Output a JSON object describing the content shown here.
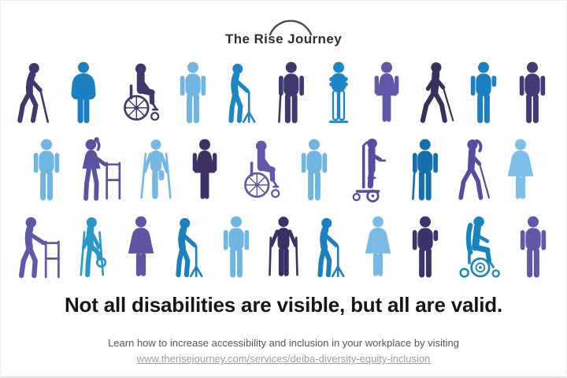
{
  "logo": {
    "text": "The Rise Journey"
  },
  "headline": "Not all disabilities are visible, but all are valid.",
  "footer": {
    "line1": "Learn how to increase accessibility and inclusion in your workplace by visiting",
    "link": "www.therisejourney.com/services/deiba-diversity-equity-inclusion"
  },
  "colors": {
    "background": "#ffffff",
    "headline_text": "#17171a",
    "footer_text": "#54585c",
    "link_text": "#9b9ea3",
    "logo_text": "#2e2e2e",
    "navy": "#3e3a6e",
    "purple": "#6059a8",
    "dark_purple": "#3e3166",
    "blue": "#1d82c5",
    "light_blue": "#6fb5e2"
  },
  "icon_rows": [
    {
      "icons": [
        {
          "name": "elder-walking-with-cane",
          "type": "cane-walk",
          "color": "#3e3a6e",
          "label": "elderly person walking with a cane"
        },
        {
          "name": "plus-size-person",
          "type": "standing-plus",
          "color": "#1d7fc3",
          "label": "plus-size standing person"
        },
        {
          "name": "manual-wheelchair-user",
          "type": "wheelchair",
          "color": "#3e3a6e",
          "label": "person using a manual wheelchair"
        },
        {
          "name": "standing-person",
          "type": "standing",
          "color": "#6fb5e2",
          "label": "standing person"
        },
        {
          "name": "person-with-walking-stool",
          "type": "quad-cane",
          "color": "#1d86c3",
          "label": "person leaning on a walking stool"
        },
        {
          "name": "person-with-cane",
          "type": "cane-stand",
          "color": "#3e3a6e",
          "label": "person standing with a cane"
        },
        {
          "name": "person-with-leg-prostheses",
          "type": "arms-crossed",
          "color": "#1d86c8",
          "label": "person with leg prostheses, arms crossed"
        },
        {
          "name": "standing-woman",
          "type": "woman",
          "color": "#5f58a8",
          "label": "standing woman"
        },
        {
          "name": "white-cane-user",
          "type": "white-cane",
          "color": "#36325f",
          "label": "blind person walking with a white cane"
        },
        {
          "name": "person-with-limb-difference",
          "type": "standing-limb",
          "color": "#1b7fc4",
          "label": "person with a limb difference"
        },
        {
          "name": "standing-person",
          "type": "standing",
          "color": "#453a78",
          "label": "standing person"
        }
      ]
    },
    {
      "icons": [
        {
          "name": "standing-person",
          "type": "standing",
          "color": "#6fb5e2",
          "label": "standing person"
        },
        {
          "name": "woman-with-walker",
          "type": "walker-woman",
          "color": "#5c52a2",
          "label": "woman using a walker"
        },
        {
          "name": "amputee-on-crutches",
          "type": "crutches",
          "color": "#74b9e6",
          "label": "leg amputee using crutches"
        },
        {
          "name": "standing-woman",
          "type": "woman",
          "color": "#3e3166",
          "label": "standing woman"
        },
        {
          "name": "manual-wheelchair-user",
          "type": "wheelchair",
          "color": "#6058a8",
          "label": "person using a manual wheelchair"
        },
        {
          "name": "standing-person",
          "type": "standing",
          "color": "#6fb5e2",
          "label": "standing person"
        },
        {
          "name": "standing-wheelchair-user",
          "type": "standing-wheelchair",
          "color": "#554d9e",
          "label": "person using a standing power wheelchair"
        },
        {
          "name": "person-with-cane",
          "type": "cane-stand",
          "color": "#146fad",
          "label": "person standing with a cane"
        },
        {
          "name": "blind-woman-with-cane",
          "type": "woman-white-cane",
          "color": "#554d9e",
          "label": "blind woman walking with a white cane"
        },
        {
          "name": "plus-size-woman",
          "type": "woman-plus",
          "color": "#7cbfe8",
          "label": "plus-size standing woman"
        }
      ]
    },
    {
      "icons": [
        {
          "name": "person-with-walker",
          "type": "walker",
          "color": "#6059a8",
          "label": "person using a walker"
        },
        {
          "name": "person-with-leg-cast",
          "type": "crutches-cast",
          "color": "#2a97c9",
          "label": "person on crutches with a leg cast"
        },
        {
          "name": "plus-size-woman",
          "type": "woman-plus",
          "color": "#5f55a4",
          "label": "plus-size standing woman"
        },
        {
          "name": "elder-with-quad-cane",
          "type": "quad-cane",
          "color": "#1c7fc0",
          "label": "elderly person with a quad cane"
        },
        {
          "name": "standing-person",
          "type": "standing",
          "color": "#6fb5e2",
          "label": "standing person"
        },
        {
          "name": "person-with-forearm-crutches",
          "type": "forearm-crutches",
          "color": "#3a3065",
          "label": "person using forearm crutches"
        },
        {
          "name": "elder-with-quad-cane",
          "type": "quad-cane",
          "color": "#1c7fc0",
          "label": "elderly person with a quad cane"
        },
        {
          "name": "plus-size-woman",
          "type": "woman-plus",
          "color": "#79bbe6",
          "label": "plus-size standing woman"
        },
        {
          "name": "person-with-limb-difference",
          "type": "standing-limb",
          "color": "#39356a",
          "label": "person with a limb difference"
        },
        {
          "name": "power-wheelchair-user",
          "type": "power-wheelchair",
          "color": "#1786c0",
          "label": "person using a motorized wheelchair"
        },
        {
          "name": "standing-person",
          "type": "standing",
          "color": "#6059a8",
          "label": "standing person"
        }
      ]
    }
  ]
}
